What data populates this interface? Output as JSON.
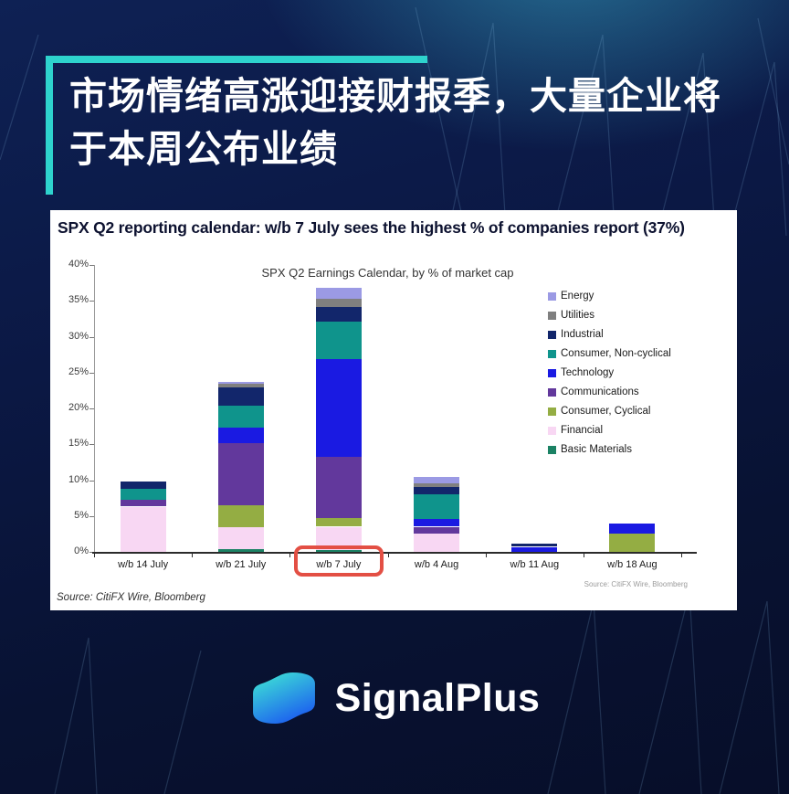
{
  "header": {
    "title_line1": "市场情绪高涨迎接财报季，大量企业将",
    "title_line2": "于本周公布业绩",
    "accent_color": "#2ed3cd"
  },
  "panel": {
    "title": "SPX Q2 reporting calendar: w/b 7 July sees the highest % of companies report (37%)",
    "chart_source": "Source: CitiFX Wire, Bloomberg",
    "footer_source": "Source: CitiFX Wire, Bloomberg"
  },
  "chart_data": {
    "type": "bar",
    "stacked": true,
    "title": "SPX Q2 Earnings Calendar, by % of market cap",
    "xlabel": "",
    "ylabel": "",
    "ylim": [
      0,
      40
    ],
    "ytick_step": 5,
    "ytick_labels": [
      "0%",
      "5%",
      "10%",
      "15%",
      "20%",
      "25%",
      "30%",
      "35%",
      "40%"
    ],
    "grid": false,
    "legend_position": "right",
    "categories": [
      "w/b 14 July",
      "w/b 21 July",
      "w/b 7 July",
      "w/b 4 Aug",
      "w/b 11 Aug",
      "w/b 18 Aug"
    ],
    "series": [
      {
        "name": "Energy",
        "color": "#9b9ae4",
        "values": [
          0,
          0.3,
          1.5,
          1.0,
          0,
          0
        ]
      },
      {
        "name": "Utilities",
        "color": "#7f7f7f",
        "values": [
          0,
          0.5,
          1.2,
          0.5,
          0,
          0
        ]
      },
      {
        "name": "Industrial",
        "color": "#12266b",
        "values": [
          1.0,
          2.5,
          2.0,
          1.0,
          0.5,
          0
        ]
      },
      {
        "name": "Consumer, Non-cyclical",
        "color": "#0f948c",
        "values": [
          1.5,
          3.1,
          5.2,
          3.4,
          0,
          0
        ]
      },
      {
        "name": "Technology",
        "color": "#1a1ae2",
        "values": [
          0,
          2.1,
          13.6,
          1.1,
          0.7,
          1.5
        ]
      },
      {
        "name": "Communications",
        "color": "#62389c",
        "values": [
          1.0,
          8.7,
          8.6,
          1.0,
          0,
          0
        ]
      },
      {
        "name": "Consumer, Cyclical",
        "color": "#94ad43",
        "values": [
          0,
          3.0,
          1.2,
          0,
          0,
          2.5
        ]
      },
      {
        "name": "Financial",
        "color": "#f8d7f3",
        "values": [
          6.3,
          3.1,
          3.2,
          2.5,
          0,
          0
        ]
      },
      {
        "name": "Basic Materials",
        "color": "#1b8264",
        "values": [
          0,
          0.4,
          0.3,
          0,
          0,
          0
        ]
      }
    ],
    "highlight": {
      "category": "w/b 7 July",
      "color": "#e34f44"
    }
  },
  "logo": {
    "text": "SignalPlus",
    "gradient_from": "#3fe8d4",
    "gradient_to": "#1e66ee"
  }
}
